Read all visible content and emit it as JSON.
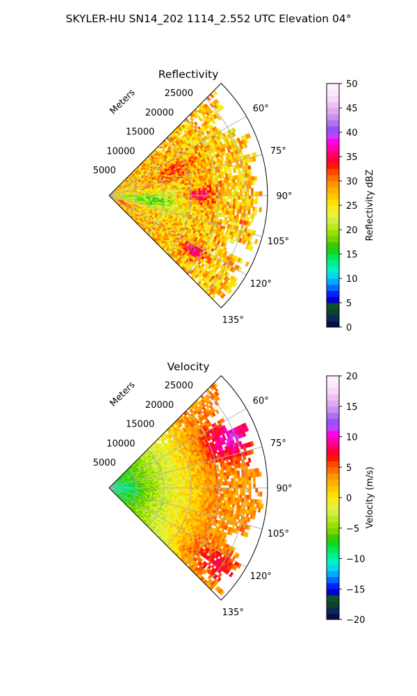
{
  "figure_title": "SKYLER-HU  SN14_202  1114_2.552 UTC Elevation 04°",
  "chart_data": [
    {
      "type": "heatmap",
      "subtype": "polar-sector",
      "title": "Reflectivity",
      "radial_label": "Meters",
      "radial_ticks": [
        5000,
        10000,
        15000,
        20000,
        25000
      ],
      "radial_tick_labels": [
        "5000",
        "10000",
        "15000",
        "20000",
        "25000"
      ],
      "rlim": [
        0,
        29000
      ],
      "angular_ticks": [
        60,
        75,
        90,
        105,
        120,
        135
      ],
      "angular_tick_labels": [
        "60°",
        "75°",
        "90°",
        "105°",
        "120°",
        "135°"
      ],
      "theta_range_deg": [
        45,
        135
      ],
      "grid": true,
      "colorbar": {
        "label": "Reflectivity dBZ",
        "range": [
          0,
          50
        ],
        "ticks": [
          0,
          5,
          10,
          15,
          20,
          25,
          30,
          35,
          40,
          45,
          50
        ],
        "tick_labels": [
          "0",
          "5",
          "10",
          "15",
          "20",
          "25",
          "30",
          "35",
          "40",
          "45",
          "50"
        ],
        "colors": [
          "#07104e",
          "#0a2a55",
          "#0d4030",
          "#10502a",
          "#0000c8",
          "#0020ff",
          "#0068ff",
          "#00a8ff",
          "#00d8f0",
          "#00f0c8",
          "#00f090",
          "#00e858",
          "#10d820",
          "#40c800",
          "#70d800",
          "#98e000",
          "#b8e820",
          "#d0f040",
          "#e8f040",
          "#f4ec20",
          "#ffe000",
          "#ffc800",
          "#ffb000",
          "#ff9800",
          "#ff7000",
          "#ff4800",
          "#ff1800",
          "#ff0030",
          "#ff0070",
          "#ff00b0",
          "#ff00e8",
          "#c040ff",
          "#9850ff",
          "#b070f0",
          "#c890f0",
          "#e0a8f0",
          "#f0c0f0",
          "#f8d8f8",
          "#fce8fc",
          "#fff0ff"
        ]
      },
      "field_summary": "Mostly 15–35 dBZ echoes; lowest values (~15–20 dBZ) in a band near 90–100° at 4000–12000 m; cores of 35–40 dBZ near 90° around 15000–18000 m and near 120–125° around 17000–20000 m; echo-free gap near 110–115° beyond 23000 m."
    },
    {
      "type": "heatmap",
      "subtype": "polar-sector",
      "title": "Velocity",
      "radial_label": "Meters",
      "radial_ticks": [
        5000,
        10000,
        15000,
        20000,
        25000
      ],
      "radial_tick_labels": [
        "5000",
        "10000",
        "15000",
        "20000",
        "25000"
      ],
      "rlim": [
        0,
        29000
      ],
      "angular_ticks": [
        60,
        75,
        90,
        105,
        120,
        135
      ],
      "angular_tick_labels": [
        "60°",
        "75°",
        "90°",
        "105°",
        "120°",
        "135°"
      ],
      "theta_range_deg": [
        45,
        135
      ],
      "grid": true,
      "colorbar": {
        "label": "Velocity (m/s)",
        "range": [
          -20,
          20
        ],
        "ticks": [
          -20,
          -15,
          -10,
          -5,
          0,
          5,
          10,
          15,
          20
        ],
        "tick_labels": [
          "−20",
          "−15",
          "−10",
          "−5",
          "0",
          "5",
          "10",
          "15",
          "20"
        ],
        "colors": [
          "#07104e",
          "#0a2a55",
          "#0d4030",
          "#10502a",
          "#0000c8",
          "#0020ff",
          "#0068ff",
          "#00a8ff",
          "#00d8f0",
          "#00f0c8",
          "#00f090",
          "#00e858",
          "#10d820",
          "#40c800",
          "#70d800",
          "#98e000",
          "#b8e820",
          "#d0f040",
          "#e8f040",
          "#f4ec20",
          "#ffe000",
          "#ffc800",
          "#ffb000",
          "#ff9800",
          "#ff7000",
          "#ff4800",
          "#ff1800",
          "#ff0030",
          "#ff0070",
          "#ff00b0",
          "#ff00e8",
          "#c040ff",
          "#9850ff",
          "#b070f0",
          "#c890f0",
          "#e0a8f0",
          "#f0c0f0",
          "#f8d8f8",
          "#fce8fc",
          "#fff0ff"
        ]
      },
      "field_summary": "About −10 to −8 m/s near the radar, rising through 0 m/s at mid range to +5 m/s at far range; strongest outbound flow of +10 to +12 m/s near 60–75° beyond 18000 m; echo-free gap near 110–115° beyond 23000 m."
    }
  ]
}
